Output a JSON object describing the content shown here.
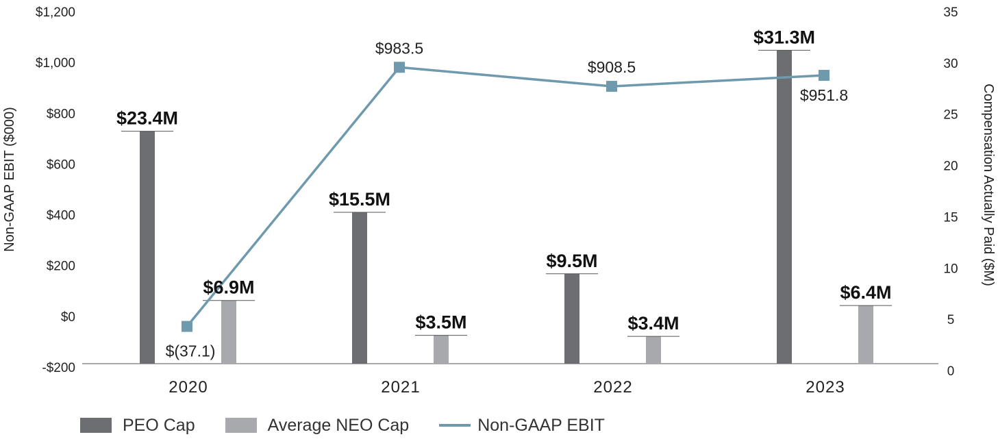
{
  "chart_data": {
    "type": "bar+line",
    "categories": [
      "2020",
      "2021",
      "2022",
      "2023"
    ],
    "series": [
      {
        "name": "PEO Cap",
        "kind": "bar",
        "axis": "right",
        "values": [
          23.4,
          15.5,
          9.5,
          31.3
        ],
        "labels": [
          "$23.4M",
          "$15.5M",
          "$9.5M",
          "$31.3M"
        ],
        "color": "#6d6e71"
      },
      {
        "name": "Average NEO Cap",
        "kind": "bar",
        "axis": "right",
        "values": [
          6.9,
          3.5,
          3.4,
          6.4
        ],
        "labels": [
          "$6.9M",
          "$3.5M",
          "$3.4M",
          "$6.4M"
        ],
        "color": "#a7a9ac"
      },
      {
        "name": "Non-GAAP EBIT",
        "kind": "line",
        "axis": "left",
        "values": [
          -37.1,
          983.5,
          908.5,
          951.8
        ],
        "labels": [
          "$(37.1)",
          "$983.5",
          "$908.5",
          "$951.8"
        ],
        "label_positions": [
          "right-below",
          "above",
          "above",
          "below"
        ],
        "color": "#6f9aae"
      }
    ],
    "left_axis": {
      "label": "Non-GAAP EBIT ($000)",
      "ylim": [
        -200,
        1200
      ],
      "ticks": [
        -200,
        0,
        200,
        400,
        600,
        800,
        1000,
        1200
      ],
      "tick_labels": [
        "-$200",
        "$0",
        "$200",
        "$400",
        "$600",
        "$800",
        "$1,000",
        "$1,200"
      ]
    },
    "right_axis": {
      "label": "Compensation Actually Paid ($M)",
      "ylim": [
        0,
        35
      ],
      "ticks": [
        0,
        5,
        10,
        15,
        20,
        25,
        30,
        35
      ],
      "tick_labels": [
        "0",
        "5",
        "10",
        "15",
        "20",
        "25",
        "30",
        "35"
      ]
    },
    "grid": false,
    "legend": "bottom-left"
  }
}
